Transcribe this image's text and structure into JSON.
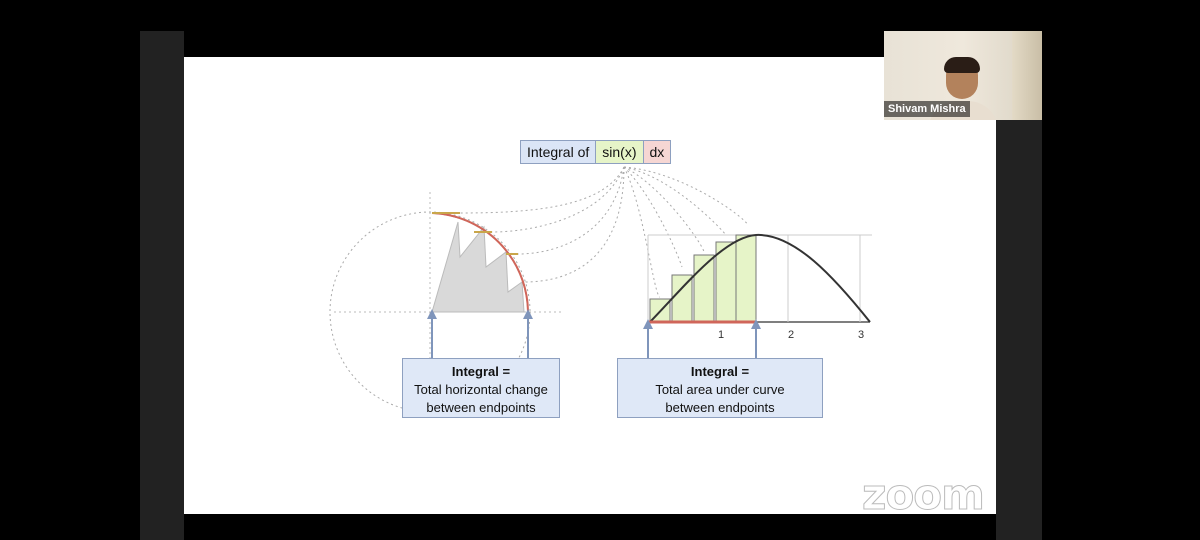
{
  "slide": {
    "title": {
      "integral_of": "Integral of",
      "function": "sin(x)",
      "differential": "dx"
    },
    "left_caption": {
      "heading": "Integral =",
      "line1": "Total horizontal change",
      "line2": "between endpoints"
    },
    "right_caption": {
      "heading": "Integral =",
      "line1": "Total area under curve",
      "line2": "between endpoints"
    },
    "right_plot": {
      "tick_labels": [
        "1",
        "2",
        "3"
      ]
    }
  },
  "webcam": {
    "participant_name": "Shivam Mishra"
  },
  "watermark": "zoom",
  "colors": {
    "integral_box": "#dbe5f6",
    "sin_box": "#e6f4c8",
    "dx_box": "#f6d6d3",
    "bar_fill": "#e6f4c8",
    "arc_red": "#d0665a",
    "arrow_blue": "#7f95bb"
  }
}
